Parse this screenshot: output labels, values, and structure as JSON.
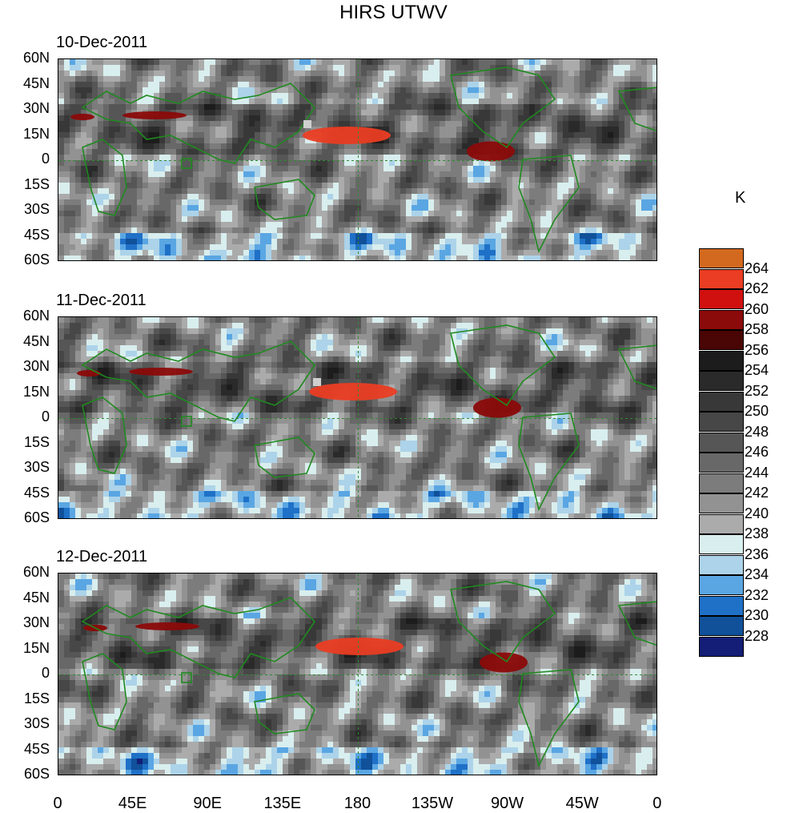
{
  "title": "HIRS UTWV",
  "panels": [
    {
      "date": "10-Dec-2011"
    },
    {
      "date": "11-Dec-2011"
    },
    {
      "date": "12-Dec-2011"
    }
  ],
  "y_ticks": [
    "60N",
    "45N",
    "30N",
    "15N",
    "0",
    "15S",
    "30S",
    "45S",
    "60S"
  ],
  "x_ticks": [
    "0",
    "45E",
    "90E",
    "135E",
    "180",
    "135W",
    "90W",
    "45W",
    "0"
  ],
  "colorbar": {
    "unit": "K",
    "labels": [
      "264",
      "262",
      "260",
      "258",
      "256",
      "254",
      "252",
      "250",
      "248",
      "246",
      "244",
      "242",
      "240",
      "238",
      "236",
      "234",
      "232",
      "230",
      "228"
    ],
    "colors": [
      "#d2691e",
      "#ea3d23",
      "#d00f0f",
      "#8b0a0a",
      "#4a0505",
      "#1c1c1c",
      "#2a2a2a",
      "#383838",
      "#474747",
      "#565656",
      "#686868",
      "#7c7c7c",
      "#929292",
      "#ababab",
      "#d9eeee",
      "#acd3e9",
      "#5aa6e3",
      "#1f70c7",
      "#10519a",
      "#141e76"
    ],
    "first_label": "264",
    "note_colors": "swatches listed from top (orange) to bottom (navy)"
  }
}
